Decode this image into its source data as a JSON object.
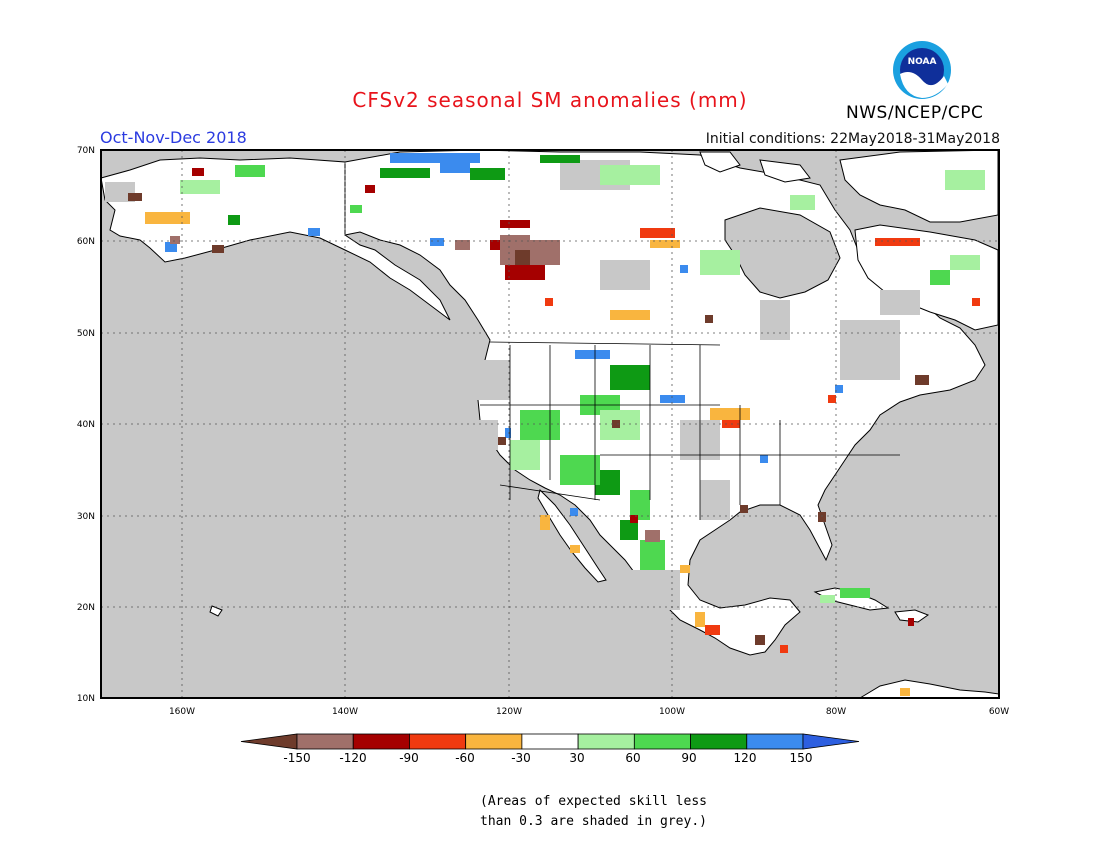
{
  "header": {
    "title": "CFSv2 seasonal SM anomalies (mm)",
    "season": "Oct-Nov-Dec 2018",
    "initial_conditions": "Initial conditions: 22May2018-31May2018",
    "agency": "NWS/NCEP/CPC",
    "logo_text": "NOAA"
  },
  "axes": {
    "lat_labels": [
      "70N",
      "60N",
      "50N",
      "40N",
      "30N",
      "20N",
      "10N"
    ],
    "lon_labels": [
      "160W",
      "140W",
      "120W",
      "100W",
      "80W",
      "60W"
    ]
  },
  "legend": {
    "tick_labels": [
      "-150",
      "-120",
      "-90",
      "-60",
      "-30",
      "30",
      "60",
      "90",
      "120",
      "150"
    ],
    "colors": [
      "#6e3b2b",
      "#a0706a",
      "#a50000",
      "#f03a10",
      "#f9b53f",
      "#ffffff",
      "#a6f0a0",
      "#4ed850",
      "#0e9a14",
      "#3b8bee",
      "#2d5fe0"
    ]
  },
  "note": {
    "line1": "(Areas of expected skill less",
    "line2": "than 0.3 are shaded in grey.)"
  },
  "colors": {
    "ocean": "#c8c8c8",
    "land_white": "#ffffff",
    "title_red": "#e8141c",
    "season_blue": "#2b3be0"
  }
}
